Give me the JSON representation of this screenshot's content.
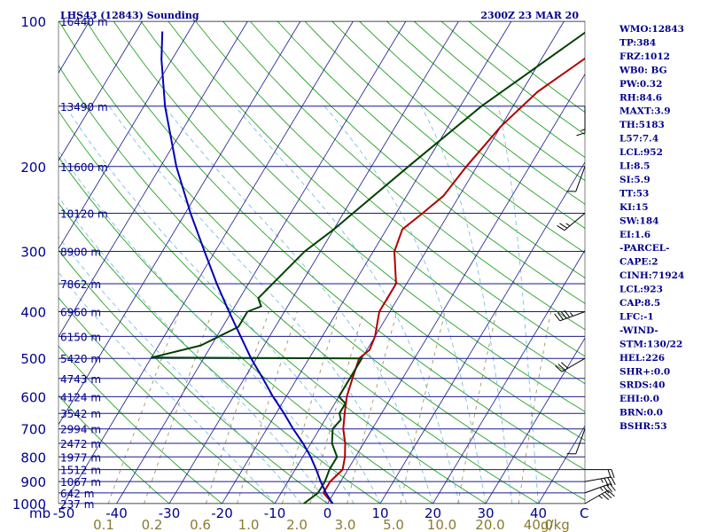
{
  "chart_data": {
    "type": "line",
    "title": "LHS43 (12843) Sounding",
    "datetime": "2300Z 23 MAR 20",
    "pressure_axis": {
      "label": "mb",
      "ticks": [
        100,
        200,
        300,
        400,
        500,
        600,
        700,
        800,
        900,
        1000
      ],
      "range": [
        100,
        1000
      ],
      "scale": "log"
    },
    "temperature_axis": {
      "unit": "C",
      "ticks": [
        -50,
        -40,
        -30,
        -20,
        -10,
        0,
        10,
        20,
        30,
        40
      ],
      "range": [
        -50,
        50
      ]
    },
    "mixing_ratio_axis": {
      "unit": "g/kg",
      "ticks": [
        "0.1",
        "0.2",
        "0.6",
        "1.0",
        "2.0",
        "3.0",
        "5.0",
        "10.0",
        "20.0",
        "40.0"
      ]
    },
    "height_labels": [
      {
        "p": 100,
        "label": "16440 m"
      },
      {
        "p": 150,
        "label": "13490 m"
      },
      {
        "p": 200,
        "label": "11600 m"
      },
      {
        "p": 250,
        "label": "10120 m"
      },
      {
        "p": 300,
        "label": "8900 m"
      },
      {
        "p": 350,
        "label": "7862 m"
      },
      {
        "p": 400,
        "label": "6960 m"
      },
      {
        "p": 450,
        "label": "6150 m"
      },
      {
        "p": 500,
        "label": "5420 m"
      },
      {
        "p": 550,
        "label": "4743 m"
      },
      {
        "p": 600,
        "label": "4124 m"
      },
      {
        "p": 650,
        "label": "3542 m"
      },
      {
        "p": 700,
        "label": "2994 m"
      },
      {
        "p": 750,
        "label": "2472 m"
      },
      {
        "p": 800,
        "label": "1977 m"
      },
      {
        "p": 850,
        "label": "1512 m"
      },
      {
        "p": 900,
        "label": "1067 m"
      },
      {
        "p": 950,
        "label": "642 m"
      },
      {
        "p": 1000,
        "label": "237 m"
      }
    ],
    "series": [
      {
        "name": "Temperature",
        "color": "#b00000",
        "points": [
          [
            1000,
            1
          ],
          [
            950,
            -2
          ],
          [
            900,
            -2
          ],
          [
            850,
            -1
          ],
          [
            800,
            -2
          ],
          [
            750,
            -3.5
          ],
          [
            700,
            -5.5
          ],
          [
            650,
            -7
          ],
          [
            600,
            -8.5
          ],
          [
            550,
            -9.5
          ],
          [
            500,
            -10.5
          ],
          [
            480,
            -9.5
          ],
          [
            450,
            -10
          ],
          [
            400,
            -12
          ],
          [
            375,
            -12
          ],
          [
            350,
            -12
          ],
          [
            300,
            -16
          ],
          [
            270,
            -17
          ],
          [
            250,
            -15
          ],
          [
            230,
            -13
          ],
          [
            200,
            -12
          ],
          [
            165,
            -10
          ],
          [
            140,
            -7
          ],
          [
            100,
            4
          ]
        ]
      },
      {
        "name": "Dewpoint",
        "color": "#004000",
        "points": [
          [
            1000,
            -4.5
          ],
          [
            950,
            -3
          ],
          [
            900,
            -3
          ],
          [
            850,
            -3.5
          ],
          [
            800,
            -3.5
          ],
          [
            750,
            -6
          ],
          [
            700,
            -7.5
          ],
          [
            670,
            -7
          ],
          [
            650,
            -8
          ],
          [
            620,
            -8
          ],
          [
            600,
            -10
          ],
          [
            550,
            -10
          ],
          [
            500,
            -10
          ],
          [
            498,
            -50
          ],
          [
            470,
            -42
          ],
          [
            430,
            -37
          ],
          [
            400,
            -37
          ],
          [
            390,
            -35
          ],
          [
            375,
            -36.5
          ],
          [
            300,
            -33
          ],
          [
            270,
            -30
          ],
          [
            200,
            -23
          ],
          [
            150,
            -16
          ],
          [
            100,
            -3
          ]
        ]
      },
      {
        "name": "Parcel",
        "color": "#0000b4",
        "points": [
          [
            1000,
            1
          ],
          [
            950,
            -1.5
          ],
          [
            900,
            -3.8
          ],
          [
            850,
            -6
          ],
          [
            800,
            -8.5
          ],
          [
            750,
            -11.5
          ],
          [
            700,
            -15
          ],
          [
            650,
            -18.5
          ],
          [
            600,
            -22.5
          ],
          [
            550,
            -26.5
          ],
          [
            500,
            -31
          ],
          [
            450,
            -35.5
          ],
          [
            400,
            -40.5
          ],
          [
            350,
            -46
          ],
          [
            300,
            -52
          ],
          [
            250,
            -59
          ],
          [
            200,
            -67
          ],
          [
            150,
            -76
          ],
          [
            120,
            -82
          ],
          [
            105,
            -85
          ]
        ]
      }
    ],
    "wind_barbs": [
      {
        "p": 1000,
        "dir": 60,
        "speed": 25
      },
      {
        "p": 950,
        "dir": 70,
        "speed": 25
      },
      {
        "p": 900,
        "dir": 80,
        "speed": 25
      },
      {
        "p": 850,
        "dir": 90,
        "speed": 20
      },
      {
        "p": 700,
        "dir": 200,
        "speed": 10
      },
      {
        "p": 500,
        "dir": 240,
        "speed": 30
      },
      {
        "p": 400,
        "dir": 250,
        "speed": 35
      },
      {
        "p": 250,
        "dir": 230,
        "speed": 15
      },
      {
        "p": 200,
        "dir": 200,
        "speed": 10
      },
      {
        "p": 150,
        "dir": 180,
        "speed": 5
      }
    ]
  },
  "indices": [
    "WMO:12843",
    "TP:384",
    "FRZ:1012",
    "WB0: BG",
    "PW:0.32",
    "RH:84.6",
    "MAXT:3.9",
    "TH:5183",
    "L57:7.4",
    "LCL:952",
    "LI:8.5",
    "SI:5.9",
    "TT:53",
    "KI:15",
    "SW:184",
    "EI:1.6",
    "-PARCEL-",
    "CAPE:2",
    "CINH:71924",
    "LCL:923",
    "CAP:8.5",
    "LFC:-1",
    "-WIND-",
    "STM:130/22",
    "HEL:226",
    "SHR+:0.0",
    "SRDS:40",
    "EHI:0.0",
    "BRN:0.0",
    "BSHR:53"
  ],
  "colors": {
    "isobar": "#1a1a8c",
    "isotherm": "#1a1a8c",
    "dry_adiabat": "#23a323",
    "moist_adiabat": "#6ab8d8",
    "mixing_ratio": "#9a8a4a",
    "text": "#00008b",
    "mixing_text": "#8a7a2e"
  }
}
